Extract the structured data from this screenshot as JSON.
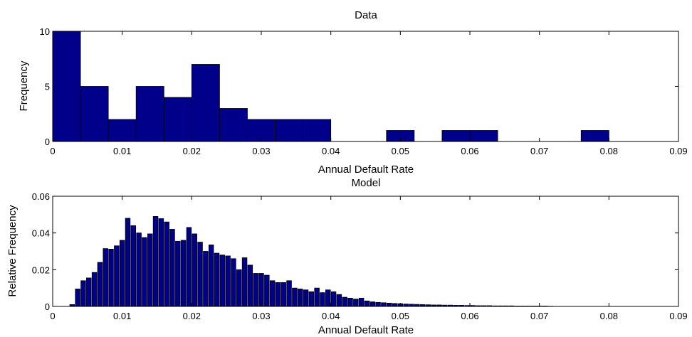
{
  "chart_data": [
    {
      "type": "bar",
      "title": "Data",
      "xlabel": "Annual Default Rate",
      "ylabel": "Frequency",
      "xlim": [
        0,
        0.09
      ],
      "ylim": [
        0,
        10
      ],
      "xticks": [
        "0",
        "0.01",
        "0.02",
        "0.03",
        "0.04",
        "0.05",
        "0.06",
        "0.07",
        "0.08",
        "0.09"
      ],
      "yticks": [
        "0",
        "5",
        "10"
      ],
      "bin_width": 0.004,
      "x": [
        0.002,
        0.006,
        0.01,
        0.014,
        0.018,
        0.022,
        0.026,
        0.03,
        0.034,
        0.038,
        0.05,
        0.058,
        0.062,
        0.078
      ],
      "values": [
        10,
        5,
        2,
        5,
        4,
        7,
        3,
        2,
        2,
        2,
        1,
        1,
        1,
        1
      ],
      "color": "#00008b"
    },
    {
      "type": "bar",
      "title": "Model",
      "xlabel": "Annual Default Rate",
      "ylabel": "Relative Frequency",
      "xlim": [
        0,
        0.09
      ],
      "ylim": [
        0,
        0.06
      ],
      "xticks": [
        "0",
        "0.01",
        "0.02",
        "0.03",
        "0.04",
        "0.05",
        "0.06",
        "0.07",
        "0.08",
        "0.09"
      ],
      "yticks": [
        "0",
        "0.02",
        "0.04",
        "0.06"
      ],
      "bin_width": 0.0008,
      "x": [
        0.0028,
        0.0036,
        0.0044,
        0.0052,
        0.006,
        0.0068,
        0.0076,
        0.0084,
        0.0092,
        0.01,
        0.0108,
        0.0116,
        0.0124,
        0.0132,
        0.014,
        0.0148,
        0.0156,
        0.0164,
        0.0172,
        0.018,
        0.0188,
        0.0196,
        0.0204,
        0.0212,
        0.022,
        0.0228,
        0.0236,
        0.0244,
        0.0252,
        0.026,
        0.0268,
        0.0276,
        0.0284,
        0.0292,
        0.03,
        0.0308,
        0.0316,
        0.0324,
        0.0332,
        0.034,
        0.0348,
        0.0356,
        0.0364,
        0.0372,
        0.038,
        0.0388,
        0.0396,
        0.0404,
        0.0412,
        0.042,
        0.0428,
        0.0436,
        0.0444,
        0.0452,
        0.046,
        0.0468,
        0.0476,
        0.0484,
        0.0492,
        0.05,
        0.0508,
        0.0516,
        0.0524,
        0.0532,
        0.054,
        0.0548,
        0.0556,
        0.0564,
        0.0572,
        0.058,
        0.0588,
        0.0596,
        0.0604,
        0.0612,
        0.062,
        0.0628,
        0.0636,
        0.0644,
        0.0652,
        0.066,
        0.0668,
        0.0676,
        0.0684,
        0.0692,
        0.07,
        0.0708,
        0.0716
      ],
      "values": [
        0.001,
        0.0095,
        0.014,
        0.0155,
        0.0185,
        0.024,
        0.0315,
        0.0312,
        0.033,
        0.036,
        0.048,
        0.044,
        0.04,
        0.0375,
        0.0395,
        0.049,
        0.0478,
        0.046,
        0.042,
        0.0355,
        0.036,
        0.043,
        0.0395,
        0.035,
        0.03,
        0.0335,
        0.029,
        0.028,
        0.0275,
        0.026,
        0.02,
        0.0265,
        0.0225,
        0.018,
        0.018,
        0.017,
        0.014,
        0.013,
        0.013,
        0.014,
        0.01,
        0.0095,
        0.009,
        0.008,
        0.01,
        0.0075,
        0.009,
        0.008,
        0.0065,
        0.005,
        0.0045,
        0.004,
        0.0045,
        0.003,
        0.0025,
        0.0022,
        0.002,
        0.0018,
        0.0016,
        0.0015,
        0.0013,
        0.0012,
        0.0011,
        0.001,
        0.0009,
        0.0008,
        0.0008,
        0.0007,
        0.0007,
        0.0006,
        0.0006,
        0.0005,
        0.0005,
        0.0004,
        0.0004,
        0.0004,
        0.0003,
        0.0003,
        0.0003,
        0.0003,
        0.0002,
        0.0002,
        0.0002,
        0.0002,
        0.0002,
        0.0002,
        0.0001
      ],
      "color": "#00008b"
    }
  ]
}
